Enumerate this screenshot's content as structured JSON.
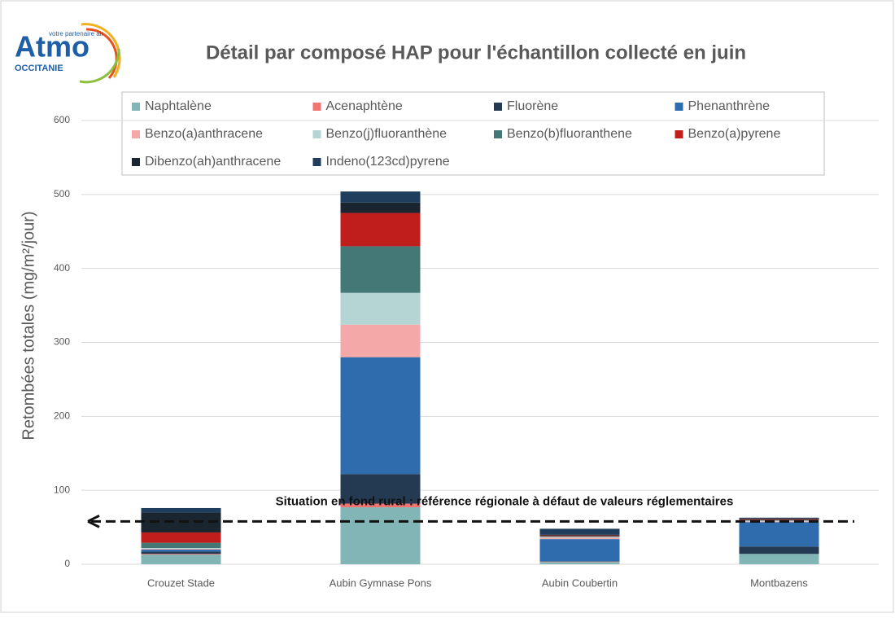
{
  "logo": {
    "name": "Atmo",
    "tagline": "votre partenaire air",
    "region": "OCCITANIE"
  },
  "chart_data": {
    "type": "stacked_bar",
    "title": "Détail par composé HAP pour l'échantillon collecté en juin",
    "y_label": "Retombées  totales (mg/m²/jour)",
    "categories": [
      "Crouzet Stade",
      "Aubin Gymnase Pons",
      "Aubin Coubertin",
      "Montbazens"
    ],
    "series": [
      {
        "name": "Naphtalène",
        "color": "#82b6b6",
        "values": [
          13,
          77,
          3,
          14
        ]
      },
      {
        "name": "Acenaphtène",
        "color": "#f07470",
        "values": [
          1,
          5,
          0.5,
          0
        ]
      },
      {
        "name": "Fluorène",
        "color": "#243a52",
        "values": [
          3,
          40,
          0.5,
          10
        ]
      },
      {
        "name": "Phenanthrène",
        "color": "#2e6cad",
        "values": [
          3,
          158,
          30,
          33
        ]
      },
      {
        "name": "Benzo(a)anthracene",
        "color": "#f4a9a8",
        "values": [
          1,
          44,
          2,
          1
        ]
      },
      {
        "name": "Benzo(j)fluoranthène",
        "color": "#b5d5d5",
        "values": [
          1,
          43,
          1,
          1
        ]
      },
      {
        "name": "Benzo(b)fluoranthene",
        "color": "#437876",
        "values": [
          7,
          63,
          1,
          1
        ]
      },
      {
        "name": "Benzo(a)pyrene",
        "color": "#c01e1c",
        "values": [
          14,
          45,
          1,
          1
        ]
      },
      {
        "name": "Dibenzo(ah)anthracene",
        "color": "#1b2530",
        "values": [
          27,
          14,
          1,
          1
        ]
      },
      {
        "name": "Indeno(123cd)pyrene",
        "color": "#1f3e5e",
        "values": [
          6,
          15,
          8,
          1
        ]
      }
    ],
    "ylim": [
      0,
      600
    ],
    "yticks": [
      0,
      100,
      200,
      300,
      400,
      500,
      600
    ],
    "grid": true,
    "reference_line": {
      "value": 58,
      "label": "Situation en fond rural : référence régionale à défaut de valeurs réglementaires"
    },
    "legend": "top"
  }
}
